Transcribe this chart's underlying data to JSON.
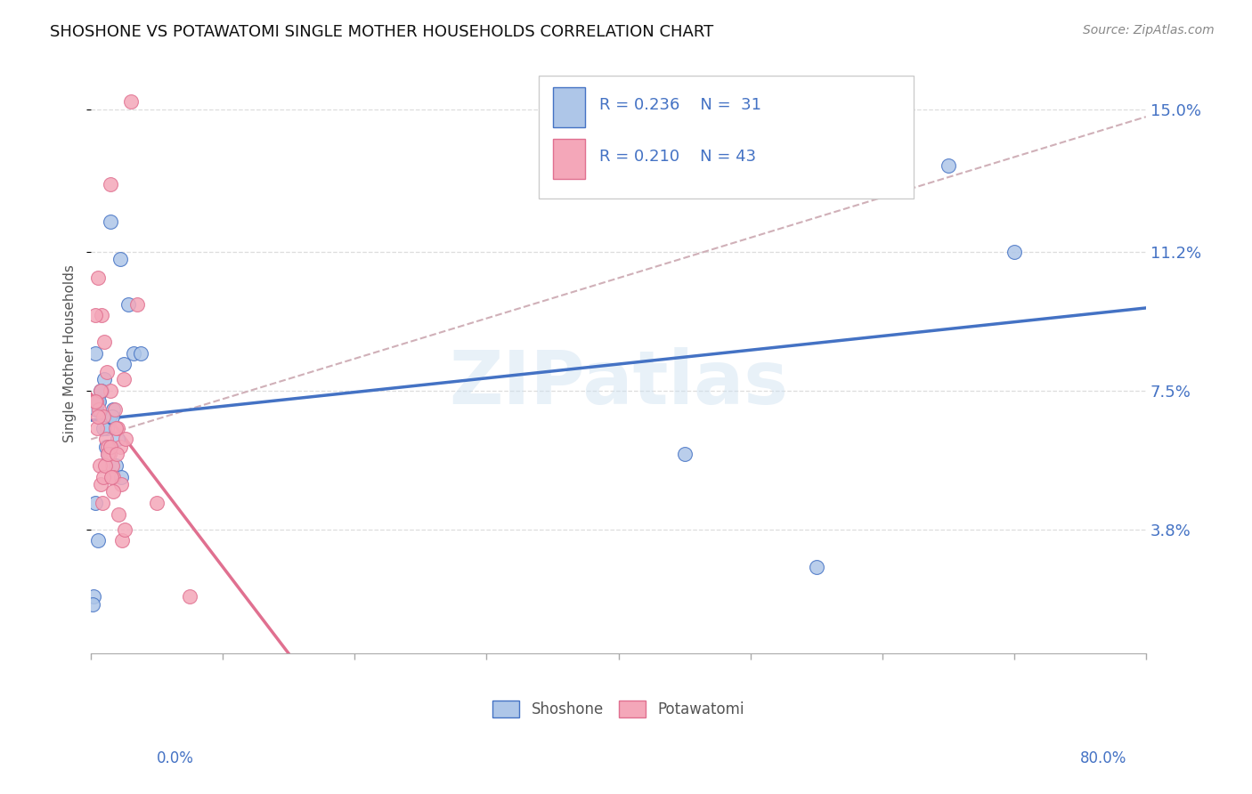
{
  "title": "SHOSHONE VS POTAWATOMI SINGLE MOTHER HOUSEHOLDS CORRELATION CHART",
  "source": "Source: ZipAtlas.com",
  "ylabel": "Single Mother Households",
  "yticks": [
    3.8,
    7.5,
    11.2,
    15.0
  ],
  "ytick_labels": [
    "3.8%",
    "7.5%",
    "11.2%",
    "15.0%"
  ],
  "xmin": 0.0,
  "xmax": 80.0,
  "ymin": 0.5,
  "ymax": 16.5,
  "watermark": "ZIPatlas",
  "legend_r1": "R = 0.236",
  "legend_n1": "N =  31",
  "legend_r2": "R = 0.210",
  "legend_n2": "N = 43",
  "shoshone_color": "#aec6e8",
  "potawatomi_color": "#f4a7b9",
  "shoshone_line_color": "#4472c4",
  "potawatomi_line_color": "#e07090",
  "trend_line_color": "#d0b0b8",
  "background_color": "#ffffff",
  "shoshone_x": [
    1.5,
    2.2,
    2.8,
    3.2,
    0.5,
    0.8,
    1.0,
    1.2,
    1.4,
    1.7,
    2.0,
    2.5,
    0.3,
    0.4,
    0.6,
    0.7,
    0.9,
    1.1,
    1.3,
    1.6,
    1.9,
    2.3,
    3.8,
    55.0,
    65.0,
    70.0,
    0.2,
    0.35,
    0.55,
    0.15,
    45.0
  ],
  "shoshone_y": [
    12.0,
    11.0,
    9.8,
    8.5,
    7.2,
    7.5,
    7.8,
    6.5,
    6.8,
    7.0,
    6.2,
    8.2,
    8.5,
    7.0,
    7.2,
    7.5,
    6.5,
    6.0,
    5.8,
    6.8,
    5.5,
    5.2,
    8.5,
    2.8,
    13.5,
    11.2,
    2.0,
    4.5,
    3.5,
    1.8,
    5.8
  ],
  "potawatomi_x": [
    3.0,
    0.5,
    0.8,
    1.0,
    1.2,
    1.5,
    1.8,
    2.0,
    2.2,
    2.5,
    0.3,
    0.4,
    0.6,
    0.7,
    0.9,
    1.1,
    1.3,
    1.4,
    1.6,
    1.7,
    2.3,
    2.6,
    3.5,
    0.35,
    0.45,
    0.55,
    0.65,
    0.75,
    0.85,
    0.95,
    1.05,
    1.25,
    1.45,
    1.55,
    1.65,
    1.85,
    1.95,
    2.1,
    2.35,
    2.55,
    5.0,
    7.5,
    1.5
  ],
  "potawatomi_y": [
    15.2,
    10.5,
    9.5,
    8.8,
    8.0,
    7.5,
    7.0,
    6.5,
    6.0,
    7.8,
    9.5,
    7.2,
    7.0,
    7.5,
    6.8,
    6.2,
    6.0,
    5.8,
    5.5,
    5.2,
    5.0,
    6.2,
    9.8,
    7.2,
    6.5,
    6.8,
    5.5,
    5.0,
    4.5,
    5.2,
    5.5,
    5.8,
    6.0,
    5.2,
    4.8,
    6.5,
    5.8,
    4.2,
    3.5,
    3.8,
    4.5,
    2.0,
    13.0
  ]
}
